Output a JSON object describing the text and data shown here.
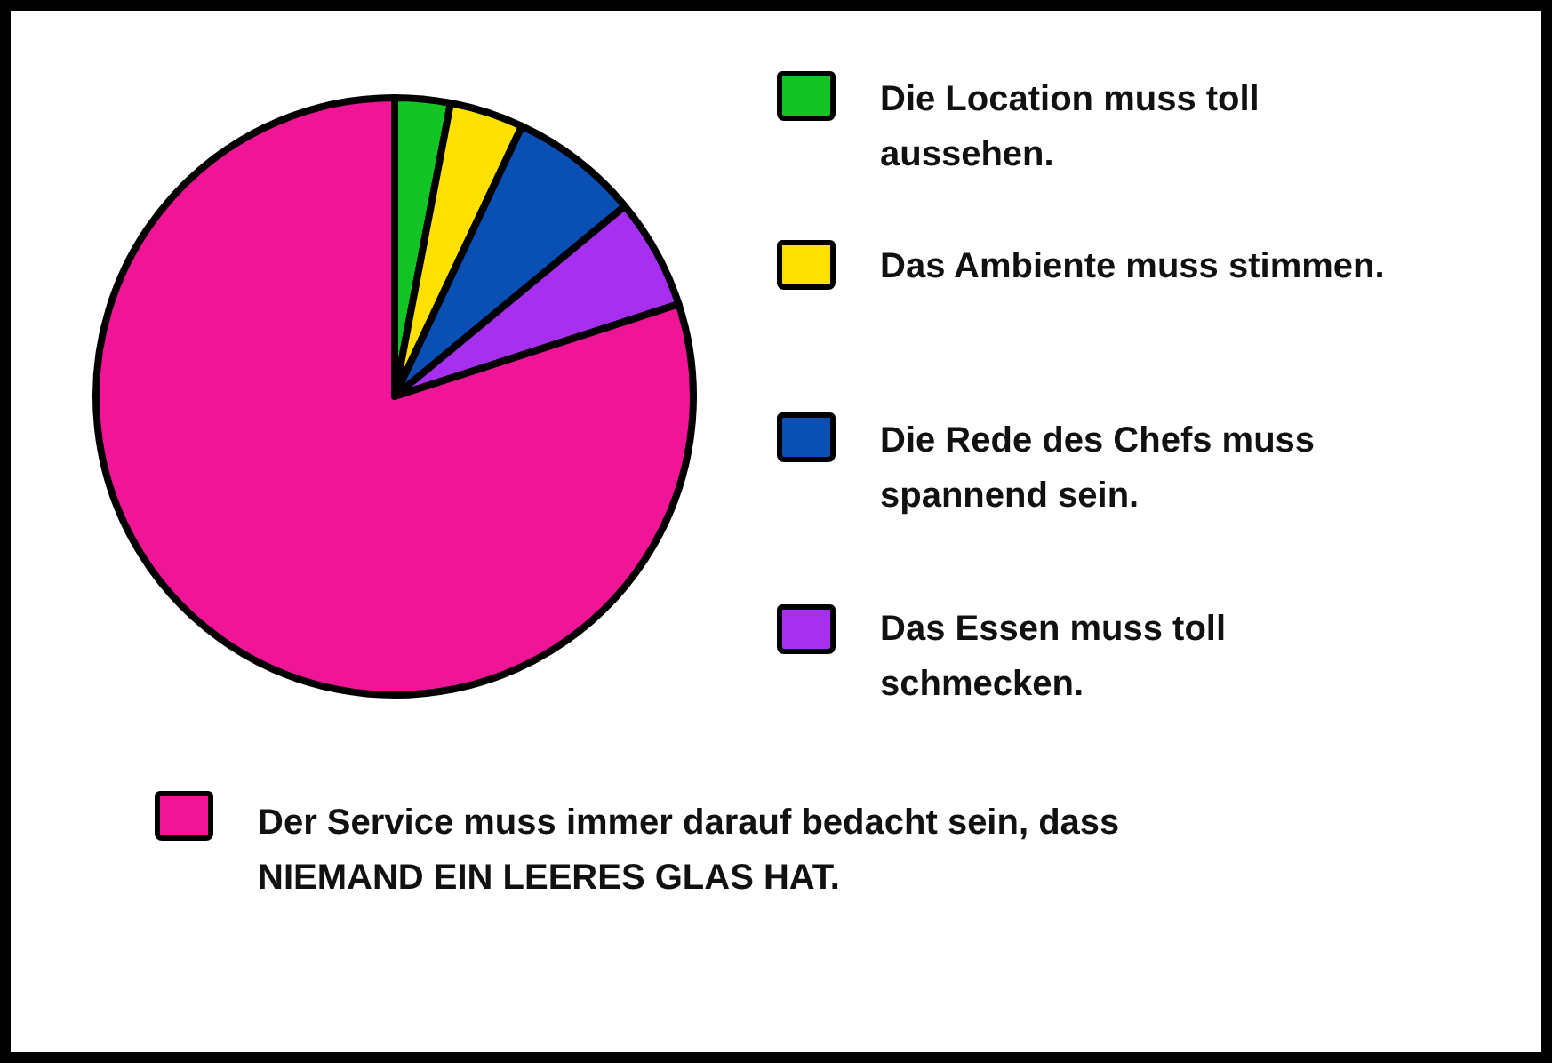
{
  "chart_data": {
    "type": "pie",
    "categories": [
      "Die Location muss toll aussehen.",
      "Das Ambiente muss stimmen.",
      "Die Rede des Chefs muss spannend sein.",
      "Das Essen muss toll schmecken.",
      "Der Service muss immer darauf bedacht sein, dass NIEMAND EIN LEERES GLAS HAT."
    ],
    "values": [
      3,
      4,
      7,
      6,
      80
    ],
    "colors": [
      "#12c424",
      "#ffe100",
      "#0a4fb4",
      "#a62ff0",
      "#f01496"
    ],
    "legend": "right"
  }
}
